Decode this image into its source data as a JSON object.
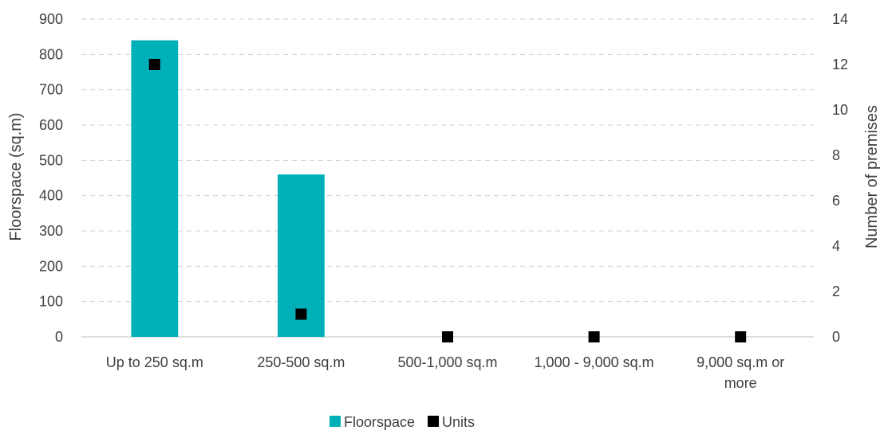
{
  "chart_data": {
    "type": "bar",
    "categories": [
      [
        "Up to 250 sq.m"
      ],
      [
        "250-500 sq.m"
      ],
      [
        "500-1,000 sq.m"
      ],
      [
        "1,000 - 9,000 sq.m"
      ],
      [
        "9,000 sq.m or",
        "more"
      ]
    ],
    "series": [
      {
        "name": "Floorspace",
        "type": "bar",
        "axis": "left",
        "color": "#00b0b9",
        "values": [
          840,
          460,
          0,
          0,
          0
        ]
      },
      {
        "name": "Units",
        "type": "scatter",
        "axis": "right",
        "color": "#000000",
        "marker": "square",
        "values": [
          12,
          1,
          0,
          0,
          0
        ]
      }
    ],
    "ylabel": "Floorspace (sq.m)",
    "y2label": "Number of premises",
    "ylim": [
      0,
      900
    ],
    "yticks": [
      0,
      100,
      200,
      300,
      400,
      500,
      600,
      700,
      800,
      900
    ],
    "y2lim": [
      0,
      14
    ],
    "y2ticks": [
      0,
      2,
      4,
      6,
      8,
      10,
      12,
      14
    ],
    "grid": true,
    "legend_position": "bottom"
  }
}
